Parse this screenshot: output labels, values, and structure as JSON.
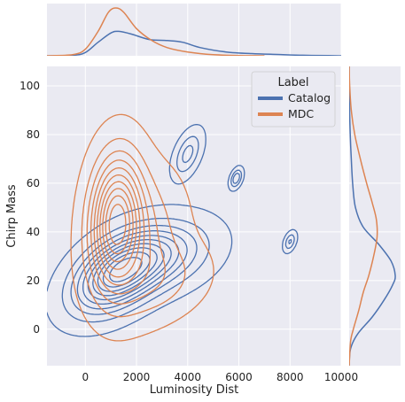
{
  "chart_data": {
    "type": "kde_jointplot",
    "xlabel": "Luminosity Dist",
    "ylabel": "Chirp Mass",
    "xlim": [
      -1500,
      10000
    ],
    "ylim": [
      -15,
      108
    ],
    "xticks": [
      0,
      2000,
      4000,
      6000,
      8000,
      10000
    ],
    "yticks": [
      0,
      20,
      40,
      60,
      80,
      100
    ],
    "grid": true,
    "legend": {
      "title": "Label",
      "placement": "top-right",
      "entries": [
        "Catalog",
        "MDC"
      ]
    },
    "series": [
      {
        "name": "Catalog",
        "color": "#4c72b0",
        "contour_levels": 10,
        "components": [
          {
            "mx": 1200,
            "my": 22,
            "sx": 1100,
            "sy": 10,
            "rho": 0.45,
            "w": 0.55
          },
          {
            "mx": 2800,
            "my": 30,
            "sx": 1300,
            "sy": 9,
            "rho": 0.3,
            "w": 0.35
          },
          {
            "mx": 4000,
            "my": 72,
            "sx": 350,
            "sy": 6,
            "rho": 0.5,
            "w": 0.035
          },
          {
            "mx": 5900,
            "my": 62,
            "sx": 150,
            "sy": 2.5,
            "rho": 0.4,
            "w": 0.008
          },
          {
            "mx": 8000,
            "my": 36,
            "sx": 150,
            "sy": 2.5,
            "rho": 0.4,
            "w": 0.006
          }
        ],
        "marginal_x": [
          [
            -1500,
            0.0
          ],
          [
            -500,
            0.01
          ],
          [
            0,
            0.06
          ],
          [
            500,
            0.25
          ],
          [
            1000,
            0.42
          ],
          [
            1300,
            0.45
          ],
          [
            1800,
            0.4
          ],
          [
            2500,
            0.3
          ],
          [
            3200,
            0.28
          ],
          [
            3800,
            0.25
          ],
          [
            4500,
            0.15
          ],
          [
            5500,
            0.07
          ],
          [
            6500,
            0.04
          ],
          [
            7500,
            0.025
          ],
          [
            8500,
            0.01
          ],
          [
            9500,
            0.003
          ],
          [
            10000,
            0.0
          ]
        ],
        "marginal_y": [
          [
            -15,
            0.0
          ],
          [
            -8,
            0.02
          ],
          [
            -2,
            0.12
          ],
          [
            5,
            0.33
          ],
          [
            12,
            0.5
          ],
          [
            18,
            0.62
          ],
          [
            22,
            0.66
          ],
          [
            28,
            0.6
          ],
          [
            35,
            0.42
          ],
          [
            42,
            0.2
          ],
          [
            50,
            0.09
          ],
          [
            60,
            0.05
          ],
          [
            70,
            0.03
          ],
          [
            80,
            0.015
          ],
          [
            90,
            0.006
          ],
          [
            100,
            0.002
          ],
          [
            108,
            0.0
          ]
        ]
      },
      {
        "name": "MDC",
        "color": "#dd8452",
        "contour_levels": 10,
        "components": [
          {
            "mx": 1200,
            "my": 45,
            "sx": 650,
            "sy": 17,
            "rho": 0.1,
            "w": 0.6
          },
          {
            "mx": 2000,
            "my": 35,
            "sx": 1100,
            "sy": 18,
            "rho": 0.2,
            "w": 0.3
          },
          {
            "mx": 3000,
            "my": 20,
            "sx": 1200,
            "sy": 10,
            "rho": 0.2,
            "w": 0.1
          }
        ],
        "marginal_x": [
          [
            -1500,
            0.0
          ],
          [
            -500,
            0.02
          ],
          [
            0,
            0.12
          ],
          [
            500,
            0.45
          ],
          [
            900,
            0.8
          ],
          [
            1200,
            0.88
          ],
          [
            1500,
            0.8
          ],
          [
            2000,
            0.5
          ],
          [
            2600,
            0.28
          ],
          [
            3200,
            0.15
          ],
          [
            4000,
            0.07
          ],
          [
            5000,
            0.02
          ],
          [
            6000,
            0.005
          ],
          [
            7000,
            0.0
          ]
        ],
        "marginal_y": [
          [
            -15,
            0.0
          ],
          [
            -5,
            0.02
          ],
          [
            0,
            0.06
          ],
          [
            8,
            0.14
          ],
          [
            15,
            0.2
          ],
          [
            22,
            0.28
          ],
          [
            30,
            0.35
          ],
          [
            38,
            0.4
          ],
          [
            45,
            0.39
          ],
          [
            52,
            0.33
          ],
          [
            60,
            0.25
          ],
          [
            70,
            0.16
          ],
          [
            80,
            0.08
          ],
          [
            90,
            0.03
          ],
          [
            100,
            0.008
          ],
          [
            108,
            0.0
          ]
        ]
      }
    ]
  }
}
